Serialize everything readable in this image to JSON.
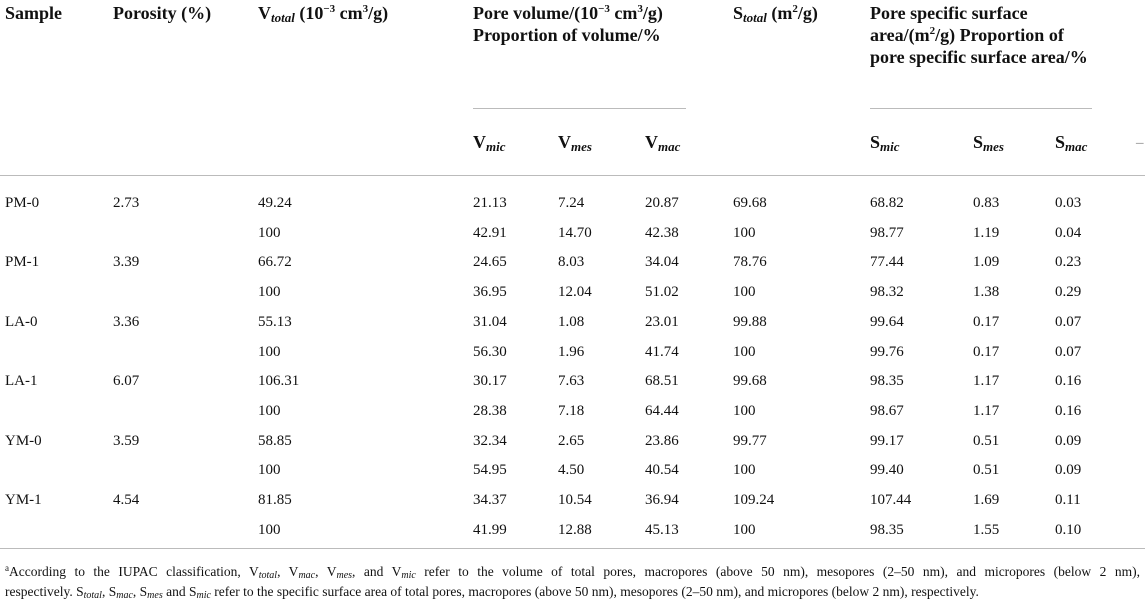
{
  "header": {
    "sample": "Sample",
    "porosity": "Porosity (%)",
    "v_total": [
      "V",
      "total",
      " (10",
      "−3",
      " cm",
      "3",
      "/g)"
    ],
    "pore_volume": {
      "title": [
        "Pore volume/(10",
        "−3",
        " cm",
        "3",
        "/g)"
      ],
      "subtitle": "Proportion of volume/%",
      "columns": [
        [
          "V",
          "mic"
        ],
        [
          "V",
          "mes"
        ],
        [
          "V",
          "mac"
        ]
      ]
    },
    "s_total": [
      "S",
      "total",
      " (m",
      "2",
      "/g)"
    ],
    "pore_surface": {
      "title": [
        "Pore specific surface area/(m",
        "2",
        "/g) Proportion of pore specific surface area/%"
      ],
      "columns": [
        [
          "S",
          "mic"
        ],
        [
          "S",
          "mes"
        ],
        [
          "S",
          "mac"
        ]
      ]
    },
    "trailing": "–"
  },
  "table": {
    "samples": [
      {
        "name": "PM-0",
        "porosity": "2.73",
        "rows": [
          [
            "49.24",
            "21.13",
            "7.24",
            "20.87",
            "69.68",
            "68.82",
            "0.83",
            "0.03"
          ],
          [
            "100",
            "42.91",
            "14.70",
            "42.38",
            "100",
            "98.77",
            "1.19",
            "0.04"
          ]
        ]
      },
      {
        "name": "PM-1",
        "porosity": "3.39",
        "rows": [
          [
            "66.72",
            "24.65",
            "8.03",
            "34.04",
            "78.76",
            "77.44",
            "1.09",
            "0.23"
          ],
          [
            "100",
            "36.95",
            "12.04",
            "51.02",
            "100",
            "98.32",
            "1.38",
            "0.29"
          ]
        ]
      },
      {
        "name": "LA-0",
        "porosity": "3.36",
        "rows": [
          [
            "55.13",
            "31.04",
            "1.08",
            "23.01",
            "99.88",
            "99.64",
            "0.17",
            "0.07"
          ],
          [
            "100",
            "56.30",
            "1.96",
            "41.74",
            "100",
            "99.76",
            "0.17",
            "0.07"
          ]
        ]
      },
      {
        "name": "LA-1",
        "porosity": "6.07",
        "rows": [
          [
            "106.31",
            "30.17",
            "7.63",
            "68.51",
            "99.68",
            "98.35",
            "1.17",
            "0.16"
          ],
          [
            "100",
            "28.38",
            "7.18",
            "64.44",
            "100",
            "98.67",
            "1.17",
            "0.16"
          ]
        ]
      },
      {
        "name": "YM-0",
        "porosity": "3.59",
        "rows": [
          [
            "58.85",
            "32.34",
            "2.65",
            "23.86",
            "99.77",
            "99.17",
            "0.51",
            "0.09"
          ],
          [
            "100",
            "54.95",
            "4.50",
            "40.54",
            "100",
            "99.40",
            "0.51",
            "0.09"
          ]
        ]
      },
      {
        "name": "YM-1",
        "porosity": "4.54",
        "rows": [
          [
            "81.85",
            "34.37",
            "10.54",
            "36.94",
            "109.24",
            "107.44",
            "1.69",
            "0.11"
          ],
          [
            "100",
            "41.99",
            "12.88",
            "45.13",
            "100",
            "98.35",
            "1.55",
            "0.10"
          ]
        ]
      }
    ]
  },
  "footnote": {
    "line1": [
      "a",
      "According to the IUPAC classification, V",
      "total",
      ", V",
      "mac",
      ", V",
      "mes",
      ", and V",
      "mic",
      " refer to the volume of total pores, macropores (above 50 nm), mesopores (2–50 nm), and micropores (below 2 nm),"
    ],
    "line2": [
      "respectively. S",
      "total",
      ", S",
      "mac",
      ", S",
      "mes",
      " and S",
      "mic",
      " refer to the specific surface area of total pores, macropores (above 50 nm), mesopores (2–50 nm), and micropores (below 2 nm), respectively."
    ]
  }
}
